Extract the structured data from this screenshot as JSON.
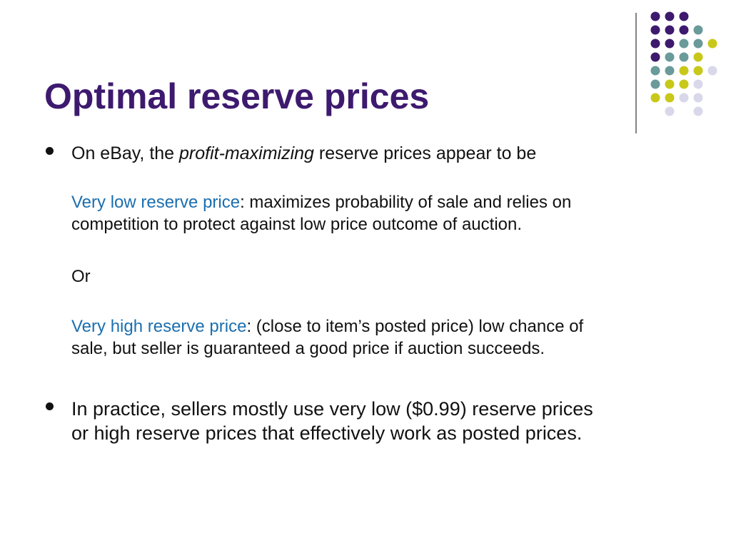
{
  "title": "Optimal reserve prices",
  "bullets": [
    {
      "parts": [
        "On eBay, the ",
        "profit-maximizing",
        " reserve prices appear to be"
      ],
      "subparagraphs": [
        {
          "term": "Very low reserve price",
          "lines": [
            ": maximizes probability of sale and relies on",
            "competition to protect against low price outcome of auction."
          ]
        },
        {
          "lines": [
            "Or"
          ]
        },
        {
          "term": "Very high reserve price",
          "lines": [
            ": (close to item’s posted price) low chance of",
            "sale, but seller is guaranteed a good price if auction succeeds."
          ]
        }
      ]
    },
    {
      "lines": [
        "In practice, sellers mostly use very low ($0.99) reserve prices",
        "or high reserve prices that effectively work as posted prices."
      ]
    }
  ]
}
